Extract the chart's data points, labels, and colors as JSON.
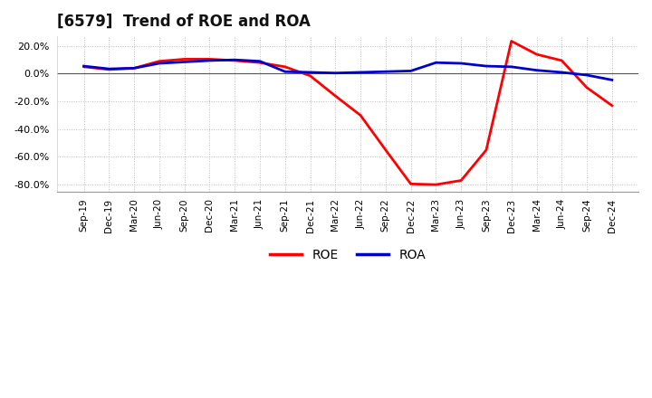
{
  "title": "[6579]  Trend of ROE and ROA",
  "x_labels": [
    "Sep-19",
    "Dec-19",
    "Mar-20",
    "Jun-20",
    "Sep-20",
    "Dec-20",
    "Mar-21",
    "Jun-21",
    "Sep-21",
    "Dec-21",
    "Mar-22",
    "Jun-22",
    "Sep-22",
    "Dec-22",
    "Mar-23",
    "Jun-23",
    "Sep-23",
    "Dec-23",
    "Mar-24",
    "Jun-24",
    "Sep-24",
    "Dec-24"
  ],
  "roe_values": [
    5.0,
    3.0,
    4.0,
    9.0,
    10.5,
    10.5,
    9.5,
    8.0,
    5.0,
    -1.5,
    -16.0,
    -30.0,
    -55.0,
    -79.5,
    -80.0,
    -77.0,
    -55.0,
    23.5,
    14.0,
    9.5,
    -10.0,
    -23.0
  ],
  "roa_values": [
    5.5,
    3.5,
    4.0,
    7.5,
    8.5,
    9.5,
    10.0,
    9.0,
    1.5,
    1.0,
    0.5,
    1.0,
    1.5,
    2.0,
    8.0,
    7.5,
    5.5,
    5.0,
    2.5,
    1.0,
    -1.0,
    -4.5
  ],
  "roe_color": "#ff0000",
  "roa_color": "#0000cc",
  "ylim_min": -85,
  "ylim_max": 27,
  "yticks": [
    -80,
    -60,
    -40,
    -20,
    0,
    20
  ],
  "title_fontsize": 12,
  "legend_labels": [
    "ROE",
    "ROA"
  ],
  "grid_color": "#aaaaaa",
  "line_width": 2.0
}
